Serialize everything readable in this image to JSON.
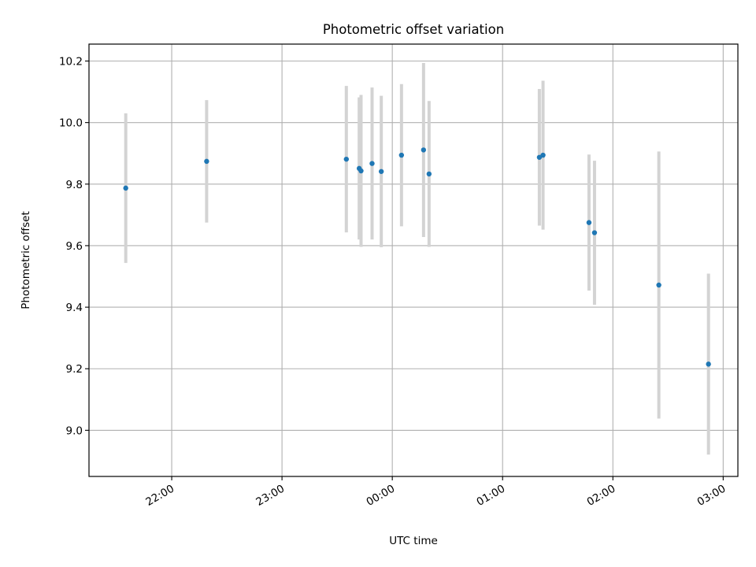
{
  "chart_data": {
    "type": "scatter",
    "title": "Photometric offset variation",
    "xlabel": "UTC time",
    "ylabel": "Photometric offset",
    "x_tick_labels": [
      "22:00",
      "23:00",
      "00:00",
      "01:00",
      "02:00",
      "03:00"
    ],
    "y_tick_labels": [
      "9.0",
      "9.2",
      "9.4",
      "9.6",
      "9.8",
      "10.0",
      "10.2"
    ],
    "y_ticks": [
      9.0,
      9.2,
      9.4,
      9.6,
      9.8,
      10.0,
      10.2
    ],
    "x_ticks": [
      "22:00",
      "23:00",
      "00:00",
      "01:00",
      "02:00",
      "03:00"
    ],
    "x_axis_type": "time",
    "xlim": [
      "21:15",
      "03:08"
    ],
    "ylim": [
      8.85,
      10.255
    ],
    "grid": true,
    "series": [
      {
        "marker_color": "#1f77b4",
        "errorbar_color": "#d3d3d3",
        "points": [
          {
            "x": "21:35",
            "y": 9.787,
            "yerr": 0.243
          },
          {
            "x": "22:19",
            "y": 9.874,
            "yerr": 0.199
          },
          {
            "x": "23:35",
            "y": 9.881,
            "yerr": 0.238
          },
          {
            "x": "23:42",
            "y": 9.851,
            "yerr": 0.231
          },
          {
            "x": "23:43",
            "y": 9.843,
            "yerr": 0.247
          },
          {
            "x": "23:49",
            "y": 9.867,
            "yerr": 0.247
          },
          {
            "x": "23:54",
            "y": 9.841,
            "yerr": 0.246
          },
          {
            "x": "00:05",
            "y": 9.894,
            "yerr": 0.231
          },
          {
            "x": "00:17",
            "y": 9.911,
            "yerr": 0.283
          },
          {
            "x": "00:20",
            "y": 9.833,
            "yerr": 0.237
          },
          {
            "x": "01:20",
            "y": 9.887,
            "yerr": 0.222
          },
          {
            "x": "01:22",
            "y": 9.894,
            "yerr": 0.242
          },
          {
            "x": "01:47",
            "y": 9.675,
            "yerr": 0.221
          },
          {
            "x": "01:50",
            "y": 9.642,
            "yerr": 0.234
          },
          {
            "x": "02:25",
            "y": 9.472,
            "yerr": 0.434
          },
          {
            "x": "02:52",
            "y": 9.215,
            "yerr": 0.294
          }
        ]
      }
    ]
  }
}
